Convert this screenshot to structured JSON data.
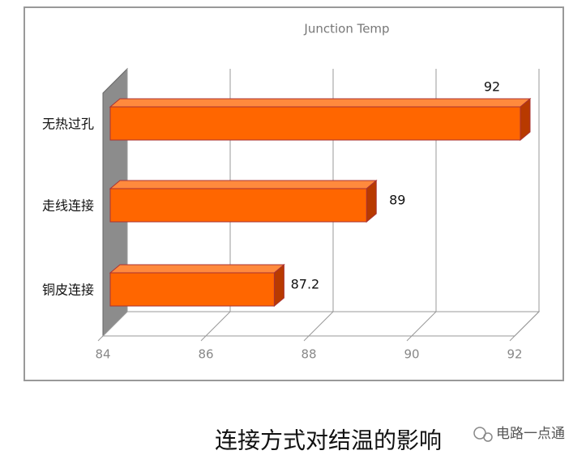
{
  "chart_data": {
    "type": "bar3d-horizontal",
    "title": "Junction Temp",
    "categories": [
      "无热过孔",
      "走线连接",
      "铜皮连接"
    ],
    "values": [
      92,
      89,
      87.2
    ],
    "color": "#ff6600",
    "xlim": [
      84,
      92
    ],
    "xticks": [
      84,
      86,
      88,
      90,
      92
    ],
    "grid": true,
    "caption": "连接方式对结温的影响",
    "watermark": "电路一点通"
  }
}
